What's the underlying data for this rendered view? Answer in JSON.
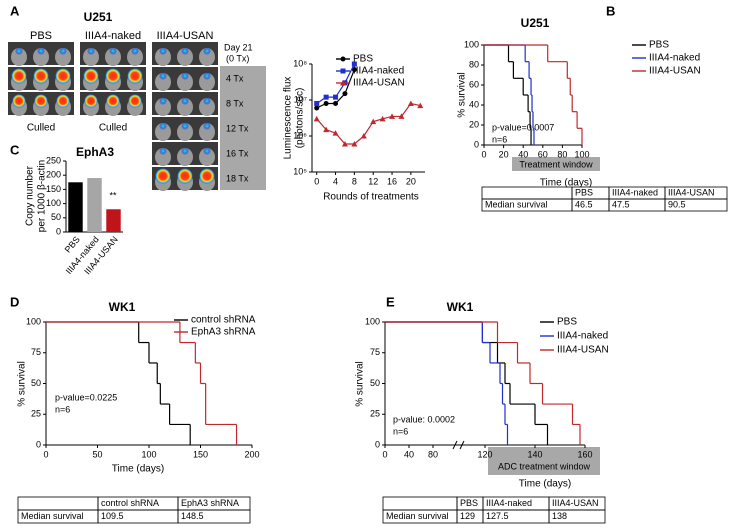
{
  "panel_labels": [
    "A",
    "B",
    "C",
    "D",
    "E"
  ],
  "imaging": {
    "title": "U251",
    "columns": [
      "PBS",
      "IIIA4-naked",
      "IIIA4-USAN"
    ],
    "day_label": [
      "Day 21",
      "(0 Tx)"
    ],
    "rows": [
      "4 Tx",
      "8 Tx",
      "12 Tx",
      "16 Tx",
      "18 Tx"
    ],
    "culled": [
      "Culled",
      "Culled"
    ]
  },
  "chart_data": [
    {
      "type": "line",
      "log_y": true,
      "xlabel": "Rounds of treatments",
      "ylabel": [
        "Luminescence flux",
        "(photons/sec)"
      ],
      "xlim": [
        -1,
        23
      ],
      "xticks": [
        0,
        4,
        8,
        12,
        16,
        20
      ],
      "ylim": [
        100000,
        100000000
      ],
      "yticks": [
        {
          "value": 100000,
          "label": "10⁵"
        },
        {
          "value": 1000000,
          "label": "10⁶"
        },
        {
          "value": 10000000,
          "label": "10⁷"
        },
        {
          "value": 100000000,
          "label": "10⁸"
        }
      ],
      "series": [
        {
          "name": "PBS",
          "color": "#000000",
          "marker": "circle",
          "x": [
            0,
            2,
            4,
            6,
            8
          ],
          "values": [
            6000000,
            8000000,
            8000000,
            15000000,
            70000000
          ]
        },
        {
          "name": "IIIA4-naked",
          "color": "#1f2fd0",
          "marker": "square",
          "x": [
            0,
            2,
            4,
            6,
            8
          ],
          "values": [
            8000000,
            12000000,
            12000000,
            30000000,
            100000000
          ]
        },
        {
          "name": "IIIA4-USAN",
          "color": "#c0282e",
          "marker": "triangle",
          "x": [
            0,
            2,
            4,
            6,
            8,
            10,
            12,
            14,
            16,
            18,
            20,
            22
          ],
          "values": [
            3000000,
            1500000,
            1200000,
            600000,
            600000,
            1000000,
            2500000,
            3000000,
            3500000,
            3500000,
            8000000,
            7000000
          ]
        }
      ]
    },
    {
      "type": "survival",
      "title": "U251",
      "xlabel": "Time (days)",
      "ylabel": "% survival",
      "xlim": [
        0,
        100
      ],
      "xticks": [
        0,
        20,
        40,
        60,
        80,
        100
      ],
      "ylim": [
        0,
        100
      ],
      "yticks": [
        0,
        20,
        40,
        60,
        80,
        100
      ],
      "window_label": "Treatment window",
      "annotations": [
        "p-value=0.0007",
        "n=6"
      ],
      "series": [
        {
          "name": "PBS",
          "color": "#000000",
          "x": [
            0,
            25,
            30,
            40,
            45,
            47,
            48
          ],
          "values": [
            100,
            83.3,
            66.7,
            50,
            33.3,
            16.7,
            0
          ]
        },
        {
          "name": "IIIA4-naked",
          "color": "#1f2fd0",
          "x": [
            0,
            42,
            46,
            48,
            49,
            50,
            51
          ],
          "values": [
            100,
            83.3,
            66.7,
            50,
            33.3,
            16.7,
            0
          ]
        },
        {
          "name": "IIIA4-USAN",
          "color": "#c0282e",
          "x": [
            0,
            65,
            85,
            88,
            90,
            95,
            100
          ],
          "values": [
            100,
            83.3,
            66.7,
            50,
            33.3,
            16.7,
            0
          ]
        }
      ]
    },
    {
      "type": "bar",
      "title": "EphA3",
      "ylabel": [
        "Copy number",
        "per 1000 β-actin"
      ],
      "categories": [
        "PBS",
        "IIIA4-naked",
        "IIIA4-USAN"
      ],
      "values": [
        175,
        190,
        80
      ],
      "colors": [
        "#000000",
        "#a6a6a6",
        "#c0141b"
      ],
      "ylim": [
        0,
        250
      ],
      "yticks": [
        0,
        50,
        100,
        150,
        200,
        250
      ],
      "annotations": [
        "**"
      ]
    },
    {
      "type": "survival",
      "title": "WK1",
      "xlabel": "Time (days)",
      "ylabel": "% survival",
      "xlim": [
        0,
        200
      ],
      "xticks": [
        0,
        50,
        100,
        150,
        200
      ],
      "ylim": [
        0,
        100
      ],
      "yticks": [
        0,
        25,
        50,
        75,
        100
      ],
      "annotations": [
        "p-value=0.0225",
        "n=6"
      ],
      "series": [
        {
          "name": "control shRNA",
          "color": "#000000",
          "x": [
            0,
            90,
            100,
            108,
            111,
            120,
            140
          ],
          "values": [
            100,
            83.3,
            66.7,
            50,
            33.3,
            16.7,
            0
          ]
        },
        {
          "name": "EphA3 shRNA",
          "color": "#c0282e",
          "x": [
            0,
            130,
            145,
            150,
            155,
            185
          ],
          "values": [
            100,
            83.3,
            66.7,
            50,
            16.7,
            0
          ]
        }
      ]
    },
    {
      "type": "survival",
      "title": "WK1",
      "xlabel": "Time (days)",
      "ylabel": "% survival",
      "axis_break": true,
      "xlim": [
        0,
        160
      ],
      "xticks": [
        0,
        40,
        80,
        120,
        140,
        160
      ],
      "ylim": [
        0,
        100
      ],
      "yticks": [
        0,
        25,
        50,
        75,
        100
      ],
      "window_label": "ADC treatment window",
      "annotations": [
        "p-value: 0.0002",
        "n=6"
      ],
      "series": [
        {
          "name": "PBS",
          "color": "#000000",
          "x": [
            0,
            118,
            125,
            128,
            130,
            140,
            145
          ],
          "values": [
            100,
            83.3,
            66.7,
            50,
            33.3,
            16.7,
            0
          ]
        },
        {
          "name": "IIIA4-naked",
          "color": "#1f2fd0",
          "x": [
            0,
            118,
            122,
            126,
            127,
            128,
            129
          ],
          "values": [
            100,
            83.3,
            66.7,
            50,
            33.3,
            16.7,
            0
          ]
        },
        {
          "name": "IIIA4-USAN",
          "color": "#c0282e",
          "x": [
            0,
            125,
            133,
            138,
            143,
            155,
            158
          ],
          "values": [
            100,
            83.3,
            66.7,
            50,
            33.3,
            16.7,
            0
          ]
        }
      ]
    }
  ],
  "tables": [
    {
      "header": [
        "PBS",
        "IIIA4-naked",
        "IIIA4-USAN"
      ],
      "row_label": "Median survival",
      "values": [
        46.5,
        47.5,
        90.5
      ]
    },
    {
      "header": [
        "control shRNA",
        "EphA3 shRNA"
      ],
      "row_label": "Median survival",
      "values": [
        109.5,
        148.5
      ]
    },
    {
      "header": [
        "PBS",
        "IIIA4-naked",
        "IIIA4-USAN"
      ],
      "row_label": "Median survival",
      "values": [
        129,
        127.5,
        138
      ]
    }
  ]
}
